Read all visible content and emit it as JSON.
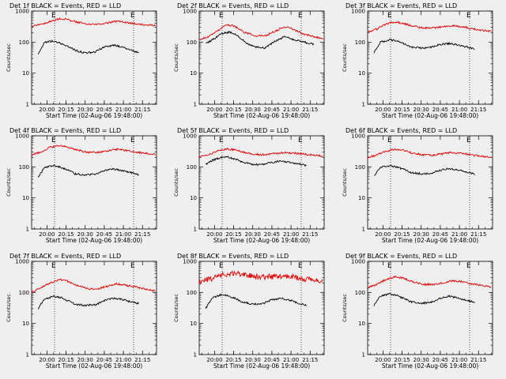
{
  "chart_data": [
    {
      "type": "line",
      "title": "Det 1f BLACK = Events, RED = LLD",
      "xlabel": "Start Time (02-Aug-06 19:48:00)",
      "ylabel": "Counts/sec",
      "yscale": "log",
      "ylim": [
        1,
        1000
      ],
      "xlim": [
        "19:48",
        "21:26"
      ],
      "x_ticks": [
        "20:00",
        "20:15",
        "20:30",
        "20:45",
        "21:00",
        "21:15"
      ],
      "y_ticks": [
        "1",
        "10",
        "100",
        "1000"
      ],
      "markers": [
        "E",
        "E"
      ],
      "marker_times": [
        "20:06",
        "21:08"
      ],
      "series": [
        {
          "name": "BLACK = Events",
          "color": "#000000",
          "x": [
            "19:53",
            "19:58",
            "20:05",
            "20:10",
            "20:16",
            "20:22",
            "20:30",
            "20:38",
            "20:45",
            "20:52",
            "21:00",
            "21:06",
            "21:12"
          ],
          "values": [
            40,
            95,
            110,
            95,
            75,
            55,
            45,
            48,
            70,
            80,
            68,
            55,
            45
          ]
        },
        {
          "name": "RED = LLD",
          "color": "#e00000",
          "x": [
            "19:48",
            "19:55",
            "20:02",
            "20:10",
            "20:16",
            "20:23",
            "20:32",
            "20:40",
            "20:48",
            "20:55",
            "21:02",
            "21:10",
            "21:18",
            "21:25"
          ],
          "values": [
            330,
            370,
            460,
            560,
            540,
            450,
            370,
            370,
            420,
            470,
            430,
            390,
            360,
            340
          ]
        }
      ]
    },
    {
      "type": "line",
      "title": "Det 2f BLACK = Events, RED = LLD",
      "xlabel": "Start Time (02-Aug-06 19:48:00)",
      "ylabel": "Counts/sec",
      "yscale": "log",
      "ylim": [
        1,
        1000
      ],
      "xlim": [
        "19:48",
        "21:26"
      ],
      "x_ticks": [
        "20:00",
        "20:15",
        "20:30",
        "20:45",
        "21:00",
        "21:15"
      ],
      "y_ticks": [
        "1",
        "10",
        "100",
        "1000"
      ],
      "markers": [
        "E",
        "E"
      ],
      "marker_times": [
        "20:06",
        "21:08"
      ],
      "series": [
        {
          "name": "BLACK = Events",
          "color": "#000000",
          "x": [
            "19:53",
            "20:00",
            "20:06",
            "20:12",
            "20:18",
            "20:25",
            "20:32",
            "20:40",
            "20:48",
            "20:55",
            "21:02",
            "21:10",
            "21:18"
          ],
          "values": [
            90,
            130,
            190,
            210,
            160,
            95,
            70,
            65,
            110,
            150,
            120,
            100,
            85
          ]
        },
        {
          "name": "RED = LLD",
          "color": "#e00000",
          "x": [
            "19:48",
            "19:55",
            "20:02",
            "20:10",
            "20:16",
            "20:23",
            "20:32",
            "20:40",
            "20:48",
            "20:55",
            "21:02",
            "21:10",
            "21:18",
            "21:25"
          ],
          "values": [
            120,
            150,
            230,
            370,
            320,
            210,
            160,
            160,
            230,
            310,
            260,
            180,
            150,
            130
          ]
        }
      ]
    },
    {
      "type": "line",
      "title": "Det 3f BLACK = Events, RED = LLD",
      "xlabel": "Start Time (02-Aug-06 19:48:00)",
      "ylabel": "Counts/sec",
      "yscale": "log",
      "ylim": [
        1,
        1000
      ],
      "xlim": [
        "19:48",
        "21:26"
      ],
      "x_ticks": [
        "20:00",
        "20:15",
        "20:30",
        "20:45",
        "21:00",
        "21:15"
      ],
      "y_ticks": [
        "1",
        "10",
        "100",
        "1000"
      ],
      "markers": [
        "E",
        "E"
      ],
      "marker_times": [
        "20:06",
        "21:08"
      ],
      "series": [
        {
          "name": "BLACK = Events",
          "color": "#000000",
          "x": [
            "19:53",
            "19:58",
            "20:05",
            "20:10",
            "20:16",
            "20:22",
            "20:30",
            "20:38",
            "20:45",
            "20:52",
            "21:00",
            "21:06",
            "21:12"
          ],
          "values": [
            45,
            100,
            120,
            110,
            90,
            70,
            65,
            68,
            85,
            90,
            80,
            70,
            60
          ]
        },
        {
          "name": "RED = LLD",
          "color": "#e00000",
          "x": [
            "19:48",
            "19:55",
            "20:02",
            "20:10",
            "20:16",
            "20:23",
            "20:32",
            "20:40",
            "20:48",
            "20:55",
            "21:02",
            "21:10",
            "21:18",
            "21:25"
          ],
          "values": [
            210,
            260,
            380,
            450,
            400,
            330,
            280,
            290,
            320,
            340,
            310,
            270,
            240,
            220
          ]
        }
      ]
    },
    {
      "type": "line",
      "title": "Det 4f BLACK = Events, RED = LLD",
      "xlabel": "Start Time (02-Aug-06 19:48:00)",
      "ylabel": "Counts/sec",
      "yscale": "log",
      "ylim": [
        1,
        1000
      ],
      "xlim": [
        "19:48",
        "21:26"
      ],
      "x_ticks": [
        "20:00",
        "20:15",
        "20:30",
        "20:45",
        "21:00",
        "21:15"
      ],
      "y_ticks": [
        "1",
        "10",
        "100",
        "1000"
      ],
      "markers": [
        "E",
        "E"
      ],
      "marker_times": [
        "20:06",
        "21:08"
      ],
      "series": [
        {
          "name": "BLACK = Events",
          "color": "#000000",
          "x": [
            "19:53",
            "19:58",
            "20:05",
            "20:10",
            "20:16",
            "20:22",
            "20:30",
            "20:38",
            "20:45",
            "20:52",
            "21:00",
            "21:06",
            "21:12"
          ],
          "values": [
            45,
            95,
            110,
            100,
            80,
            60,
            55,
            58,
            75,
            85,
            75,
            65,
            55
          ]
        },
        {
          "name": "RED = LLD",
          "color": "#e00000",
          "x": [
            "19:48",
            "19:55",
            "20:02",
            "20:10",
            "20:16",
            "20:23",
            "20:32",
            "20:40",
            "20:48",
            "20:55",
            "21:02",
            "21:10",
            "21:18",
            "21:25"
          ],
          "values": [
            240,
            300,
            420,
            480,
            440,
            360,
            290,
            290,
            330,
            370,
            340,
            300,
            270,
            250
          ]
        }
      ]
    },
    {
      "type": "line",
      "title": "Det 5f BLACK = Events, RED = LLD",
      "xlabel": "Start Time (02-Aug-06 19:48:00)",
      "ylabel": "Counts/sec",
      "yscale": "log",
      "ylim": [
        1,
        1000
      ],
      "xlim": [
        "19:48",
        "21:26"
      ],
      "x_ticks": [
        "20:00",
        "20:15",
        "20:30",
        "20:45",
        "21:00",
        "21:15"
      ],
      "y_ticks": [
        "1",
        "10",
        "100",
        "1000"
      ],
      "markers": [
        "E",
        "E"
      ],
      "marker_times": [
        "20:06",
        "21:08"
      ],
      "series": [
        {
          "name": "BLACK = Events",
          "color": "#000000",
          "x": [
            "19:53",
            "19:58",
            "20:05",
            "20:10",
            "20:16",
            "20:22",
            "20:30",
            "20:38",
            "20:45",
            "20:52",
            "21:00",
            "21:06",
            "21:12"
          ],
          "values": [
            120,
            160,
            200,
            210,
            180,
            140,
            120,
            120,
            140,
            150,
            140,
            125,
            110
          ]
        },
        {
          "name": "RED = LLD",
          "color": "#e00000",
          "x": [
            "19:48",
            "19:55",
            "20:02",
            "20:10",
            "20:16",
            "20:23",
            "20:32",
            "20:40",
            "20:48",
            "20:55",
            "21:02",
            "21:10",
            "21:18",
            "21:25"
          ],
          "values": [
            210,
            240,
            330,
            380,
            350,
            290,
            250,
            250,
            270,
            290,
            280,
            260,
            240,
            220
          ]
        }
      ]
    },
    {
      "type": "line",
      "title": "Det 6f BLACK = Events, RED = LLD",
      "xlabel": "Start Time (02-Aug-06 19:48:00)",
      "ylabel": "Counts/sec",
      "yscale": "log",
      "ylim": [
        1,
        1000
      ],
      "xlim": [
        "19:48",
        "21:26"
      ],
      "x_ticks": [
        "20:00",
        "20:15",
        "20:30",
        "20:45",
        "21:00",
        "21:15"
      ],
      "y_ticks": [
        "1",
        "10",
        "100",
        "1000"
      ],
      "markers": [
        "E",
        "E"
      ],
      "marker_times": [
        "20:06",
        "21:08"
      ],
      "series": [
        {
          "name": "BLACK = Events",
          "color": "#000000",
          "x": [
            "19:53",
            "19:58",
            "20:05",
            "20:10",
            "20:16",
            "20:22",
            "20:30",
            "20:38",
            "20:45",
            "20:52",
            "21:00",
            "21:06",
            "21:12"
          ],
          "values": [
            50,
            95,
            110,
            100,
            85,
            65,
            60,
            62,
            78,
            88,
            78,
            68,
            58
          ]
        },
        {
          "name": "RED = LLD",
          "color": "#e00000",
          "x": [
            "19:48",
            "19:55",
            "20:02",
            "20:10",
            "20:16",
            "20:23",
            "20:32",
            "20:40",
            "20:48",
            "20:55",
            "21:02",
            "21:10",
            "21:18",
            "21:25"
          ],
          "values": [
            200,
            240,
            320,
            370,
            340,
            280,
            240,
            240,
            270,
            290,
            270,
            240,
            220,
            200
          ]
        }
      ]
    },
    {
      "type": "line",
      "title": "Det 7f BLACK = Events, RED = LLD",
      "xlabel": "Start Time (02-Aug-06 19:48:00)",
      "ylabel": "Counts/sec",
      "yscale": "log",
      "ylim": [
        1,
        1000
      ],
      "xlim": [
        "19:48",
        "21:26"
      ],
      "x_ticks": [
        "20:00",
        "20:15",
        "20:30",
        "20:45",
        "21:00",
        "21:15"
      ],
      "y_ticks": [
        "1",
        "10",
        "100",
        "1000"
      ],
      "markers": [
        "E",
        "E"
      ],
      "marker_times": [
        "20:06",
        "21:08"
      ],
      "series": [
        {
          "name": "BLACK = Events",
          "color": "#000000",
          "x": [
            "19:53",
            "19:58",
            "20:05",
            "20:10",
            "20:16",
            "20:22",
            "20:30",
            "20:38",
            "20:45",
            "20:52",
            "21:00",
            "21:06",
            "21:12"
          ],
          "values": [
            30,
            60,
            75,
            70,
            55,
            42,
            38,
            40,
            55,
            65,
            58,
            50,
            44
          ]
        },
        {
          "name": "RED = LLD",
          "color": "#e00000",
          "x": [
            "19:48",
            "19:55",
            "20:02",
            "20:10",
            "20:16",
            "20:23",
            "20:32",
            "20:40",
            "20:48",
            "20:55",
            "21:02",
            "21:10",
            "21:18",
            "21:25"
          ],
          "values": [
            100,
            140,
            200,
            260,
            230,
            170,
            130,
            130,
            160,
            190,
            170,
            150,
            125,
            110
          ]
        }
      ]
    },
    {
      "type": "line",
      "title": "Det 8f BLACK = Events, RED = LLD",
      "xlabel": "Start Time (02-Aug-06 19:48:00)",
      "ylabel": "Counts/sec",
      "yscale": "log",
      "ylim": [
        1,
        1000
      ],
      "xlim": [
        "19:48",
        "21:26"
      ],
      "x_ticks": [
        "20:00",
        "20:15",
        "20:30",
        "20:45",
        "21:00",
        "21:15"
      ],
      "y_ticks": [
        "1",
        "10",
        "100",
        "1000"
      ],
      "markers": [
        "E",
        "E"
      ],
      "marker_times": [
        "20:06",
        "21:08"
      ],
      "series": [
        {
          "name": "BLACK = Events",
          "color": "#000000",
          "x": [
            "19:53",
            "19:58",
            "20:05",
            "20:10",
            "20:16",
            "20:22",
            "20:30",
            "20:38",
            "20:45",
            "20:52",
            "21:00",
            "21:06",
            "21:12"
          ],
          "values": [
            30,
            65,
            85,
            80,
            65,
            48,
            42,
            44,
            58,
            65,
            55,
            45,
            38
          ]
        },
        {
          "name": "RED = LLD",
          "color": "#e00000",
          "x": [
            "19:48",
            "19:55",
            "20:02",
            "20:10",
            "20:16",
            "20:23",
            "20:32",
            "20:40",
            "20:48",
            "20:55",
            "21:02",
            "21:10",
            "21:18",
            "21:25"
          ],
          "values": [
            220,
            260,
            330,
            400,
            420,
            380,
            320,
            310,
            330,
            340,
            310,
            280,
            250,
            230
          ]
        }
      ]
    },
    {
      "type": "line",
      "title": "Det 9f BLACK = Events, RED = LLD",
      "xlabel": "Start Time (02-Aug-06 19:48:00)",
      "ylabel": "Counts/sec",
      "yscale": "log",
      "ylim": [
        1,
        1000
      ],
      "xlim": [
        "19:48",
        "21:26"
      ],
      "x_ticks": [
        "20:00",
        "20:15",
        "20:30",
        "20:45",
        "21:00",
        "21:15"
      ],
      "y_ticks": [
        "1",
        "10",
        "100",
        "1000"
      ],
      "markers": [
        "E",
        "E"
      ],
      "marker_times": [
        "20:06",
        "21:08"
      ],
      "series": [
        {
          "name": "BLACK = Events",
          "color": "#000000",
          "x": [
            "19:53",
            "19:58",
            "20:05",
            "20:10",
            "20:16",
            "20:22",
            "20:30",
            "20:38",
            "20:45",
            "20:52",
            "21:00",
            "21:06",
            "21:12"
          ],
          "values": [
            38,
            75,
            90,
            82,
            65,
            50,
            45,
            48,
            65,
            75,
            65,
            55,
            48
          ]
        },
        {
          "name": "RED = LLD",
          "color": "#e00000",
          "x": [
            "19:48",
            "19:55",
            "20:02",
            "20:10",
            "20:16",
            "20:23",
            "20:32",
            "20:40",
            "20:48",
            "20:55",
            "21:02",
            "21:10",
            "21:18",
            "21:25"
          ],
          "values": [
            140,
            180,
            260,
            320,
            290,
            220,
            180,
            180,
            210,
            240,
            220,
            190,
            165,
            150
          ]
        }
      ]
    }
  ]
}
